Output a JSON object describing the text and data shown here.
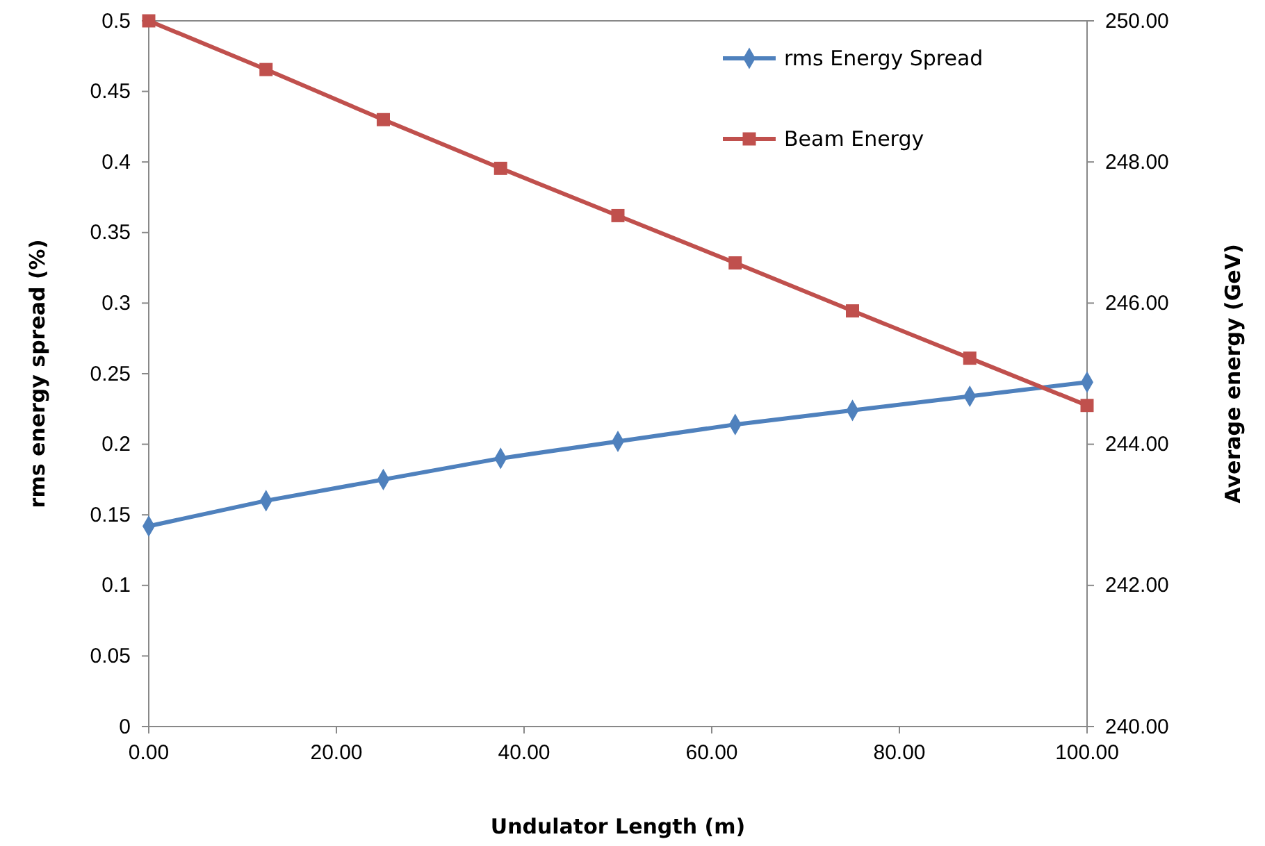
{
  "chart_data": {
    "type": "line",
    "xlabel": "Undulator Length (m)",
    "ylabel": "rms energy spread (%)",
    "y2label": "Average energy (GeV)",
    "x": [
      0,
      12.5,
      25,
      37.5,
      50,
      62.5,
      75,
      87.5,
      100
    ],
    "xlim": [
      0,
      100
    ],
    "xticks": [
      {
        "value": 0,
        "label": "0.00"
      },
      {
        "value": 20,
        "label": "20.00"
      },
      {
        "value": 40,
        "label": "40.00"
      },
      {
        "value": 60,
        "label": "60.00"
      },
      {
        "value": 80,
        "label": "80.00"
      },
      {
        "value": 100,
        "label": "100.00"
      }
    ],
    "ylim": [
      0,
      0.5
    ],
    "yticks": [
      0,
      0.05,
      0.1,
      0.15,
      0.2,
      0.25,
      0.3,
      0.35,
      0.4,
      0.45,
      0.5
    ],
    "y2lim": [
      240,
      250
    ],
    "y2ticks": [
      {
        "value": 240,
        "label": "240.00"
      },
      {
        "value": 242,
        "label": "242.00"
      },
      {
        "value": 244,
        "label": "244.00"
      },
      {
        "value": 246,
        "label": "246.00"
      },
      {
        "value": 248,
        "label": "248.00"
      },
      {
        "value": 250,
        "label": "250.00"
      }
    ],
    "grid": false,
    "legend": "top right",
    "series": [
      {
        "name": "rms Energy Spread",
        "color": "#4f81bd",
        "marker": "diamond",
        "values": [
          0.142,
          0.16,
          0.175,
          0.19,
          0.202,
          0.214,
          0.224,
          0.234,
          0.244
        ]
      },
      {
        "name": "Beam Energy",
        "color": "#c0504d",
        "marker": "square",
        "axis": "y2",
        "values": [
          250,
          249.31,
          248.6,
          247.91,
          247.24,
          246.57,
          245.89,
          245.22,
          244.55
        ]
      }
    ]
  }
}
